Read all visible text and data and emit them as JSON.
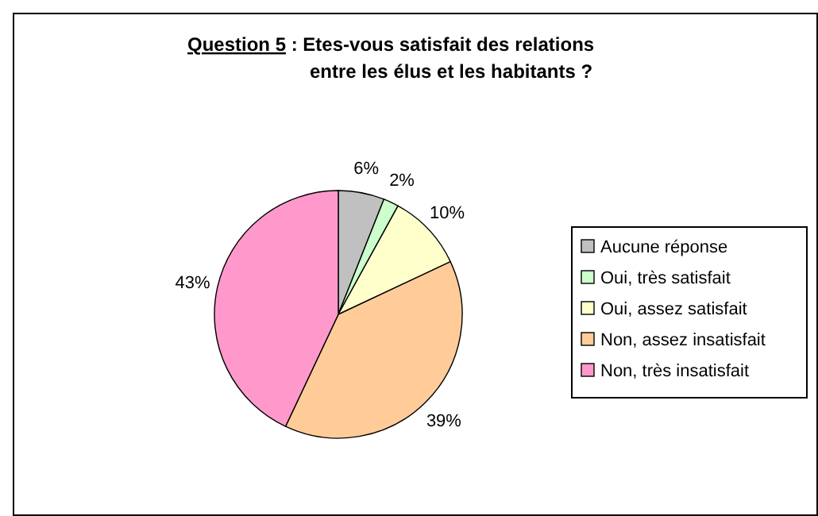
{
  "chart_data": {
    "type": "pie",
    "title": "Question 5 : Etes-vous satisfait des relations\nentre les élus et les habitants ?",
    "categories": [
      "Aucune réponse",
      "Oui, très satisfait",
      "Oui, assez satisfait",
      "Non, assez insatisfait",
      "Non, très insatisfait"
    ],
    "values": [
      6,
      2,
      10,
      39,
      43
    ],
    "colors": [
      "#c0c0c0",
      "#ccffcc",
      "#ffffcc",
      "#ffcc99",
      "#ff99cc"
    ],
    "value_labels": [
      "6%",
      "2%",
      "10%",
      "39%",
      "43%"
    ],
    "legend": "right"
  }
}
